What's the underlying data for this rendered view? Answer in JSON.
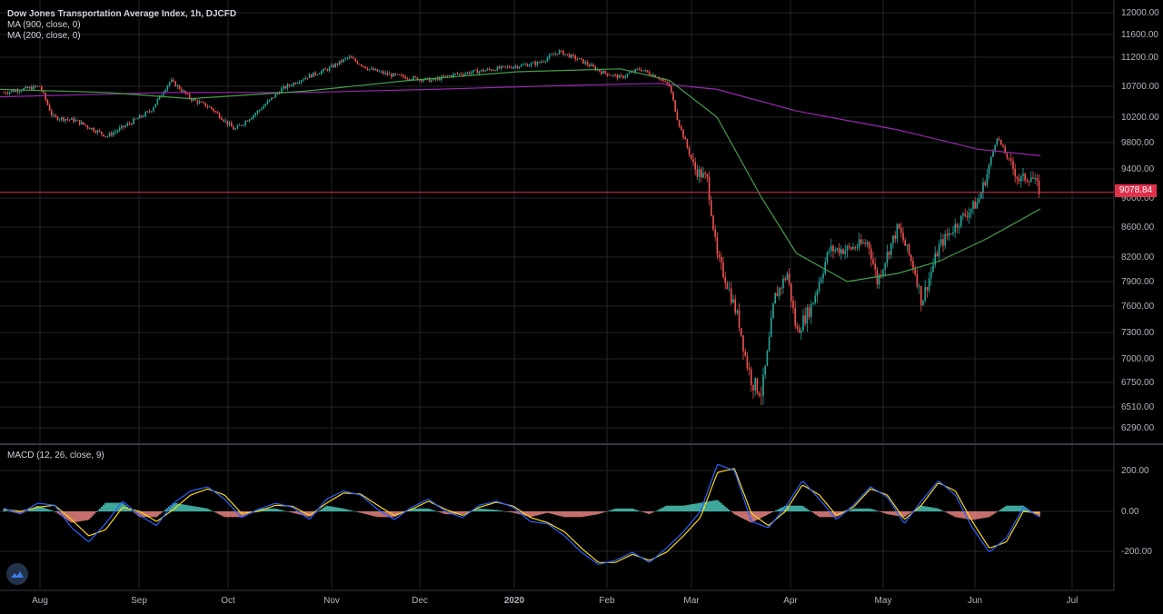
{
  "header": {
    "title": "Dow Jones Transportation Average Index, 1h, DJCFD",
    "ma1": "MA (900, close, 0)",
    "ma2": "MA (200, close, 0)"
  },
  "macd_label": "MACD (12, 26, close, 9)",
  "last_price": "9078.84",
  "colors": {
    "background": "#000000",
    "grid": "#23232a",
    "up": "#26a69a",
    "down": "#ef5350",
    "ma900": "#9c27b0",
    "ma200": "#43a047",
    "macd": "#2962ff",
    "signal": "#f9d71c",
    "price_line": "#e0304a"
  },
  "icons": [
    "tradingview-logo-icon"
  ],
  "chart_data": [
    {
      "type": "line",
      "title": "Dow Jones Transportation Average Index, 1h, DJCFD",
      "x_ticks": [
        "Aug",
        "Sep",
        "Oct",
        "Nov",
        "Dec",
        "2020",
        "Feb",
        "Mar",
        "Apr",
        "May",
        "Jun",
        "Jul"
      ],
      "y_ticks": [
        "12000.00",
        "11600.00",
        "11200.00",
        "10700.00",
        "10200.00",
        "9800.00",
        "9400.00",
        "9000.00",
        "8600.00",
        "8200.00",
        "7900.00",
        "7600.00",
        "7300.00",
        "7000.00",
        "6750.00",
        "6510.00",
        "6290.00"
      ],
      "ylim": [
        6150,
        12050
      ],
      "last_value": 9078.84,
      "grid": true,
      "series": [
        {
          "name": "DJT",
          "x": [
            "Jul 25",
            "Aug 1",
            "Aug 5",
            "Aug 12",
            "Aug 22",
            "Aug 29",
            "Sep 5",
            "Sep 12",
            "Sep 19",
            "Sep 26",
            "Oct 3",
            "Oct 10",
            "Oct 17",
            "Oct 24",
            "Oct 31",
            "Nov 7",
            "Nov 14",
            "Nov 21",
            "Nov 28",
            "Dec 5",
            "Dec 12",
            "Dec 19",
            "Dec 26",
            "Jan 2",
            "Jan 9",
            "Jan 16",
            "Jan 23",
            "Jan 30",
            "Feb 6",
            "Feb 13",
            "Feb 20",
            "Feb 24",
            "Feb 27",
            "Mar 2",
            "Mar 6",
            "Mar 9",
            "Mar 12",
            "Mar 16",
            "Mar 18",
            "Mar 20",
            "Mar 23",
            "Mar 25",
            "Mar 27",
            "Mar 31",
            "Apr 3",
            "Apr 8",
            "Apr 14",
            "Apr 20",
            "Apr 27",
            "Apr 30",
            "May 6",
            "May 12",
            "May 14",
            "May 20",
            "May 27",
            "Jun 2",
            "Jun 5",
            "Jun 8",
            "Jun 11",
            "Jun 15",
            "Jun 19",
            "Jun 22"
          ],
          "values": [
            10600,
            10700,
            10200,
            10150,
            9900,
            10100,
            10300,
            10800,
            10500,
            10350,
            10000,
            10300,
            10650,
            10850,
            11000,
            11200,
            11000,
            10900,
            10850,
            10800,
            10900,
            10950,
            11000,
            11050,
            11100,
            11300,
            11150,
            10950,
            10850,
            11000,
            10850,
            10700,
            10150,
            9400,
            9250,
            8200,
            7900,
            7400,
            7000,
            6750,
            6650,
            7100,
            7700,
            8000,
            7300,
            7600,
            8300,
            8300,
            8400,
            7900,
            8600,
            8000,
            7650,
            8350,
            8700,
            8950,
            9350,
            9900,
            9600,
            9250,
            9300,
            9078.84
          ]
        },
        {
          "name": "MA (900, close, 0)",
          "x": [
            "Jul 25",
            "Sep 12",
            "Oct 24",
            "Dec 5",
            "Jan 23",
            "Feb 20",
            "Mar 9",
            "Apr 3",
            "May 6",
            "Jun 2",
            "Jun 22"
          ],
          "values": [
            10530,
            10600,
            10600,
            10650,
            10720,
            10750,
            10650,
            10300,
            10000,
            9700,
            9600
          ]
        },
        {
          "name": "MA (200, close, 0)",
          "x": [
            "Jul 25",
            "Aug 22",
            "Sep 19",
            "Oct 24",
            "Nov 28",
            "Jan 2",
            "Feb 6",
            "Feb 24",
            "Mar 9",
            "Mar 23",
            "Apr 3",
            "Apr 20",
            "May 6",
            "May 20",
            "Jun 5",
            "Jun 22"
          ],
          "values": [
            10650,
            10600,
            10500,
            10620,
            10800,
            10950,
            11000,
            10800,
            10200,
            9000,
            8250,
            7900,
            8000,
            8150,
            8450,
            8850
          ]
        }
      ]
    },
    {
      "type": "line",
      "title": "MACD (12, 26, close, 9)",
      "y_ticks": [
        "200.00",
        "0.00",
        "-200.00"
      ],
      "ylim": [
        -400,
        260
      ],
      "grid": true,
      "series": [
        {
          "name": "MACD",
          "values": [
            15,
            -10,
            40,
            30,
            -80,
            -150,
            -60,
            50,
            -20,
            -70,
            40,
            100,
            120,
            60,
            -30,
            10,
            40,
            20,
            -40,
            60,
            100,
            80,
            10,
            -40,
            20,
            60,
            0,
            -30,
            30,
            50,
            20,
            -50,
            -60,
            -120,
            -200,
            -260,
            -240,
            -200,
            -250,
            -180,
            -100,
            0,
            230,
            200,
            -50,
            -80,
            20,
            150,
            60,
            -40,
            30,
            120,
            70,
            -60,
            50,
            150,
            80,
            -80,
            -200,
            -130,
            20,
            -30
          ]
        },
        {
          "name": "Signal",
          "values": [
            10,
            0,
            20,
            30,
            -40,
            -120,
            -90,
            20,
            0,
            -50,
            10,
            80,
            110,
            80,
            -10,
            0,
            30,
            25,
            -20,
            40,
            90,
            85,
            30,
            -20,
            10,
            50,
            10,
            -20,
            20,
            45,
            25,
            -30,
            -55,
            -100,
            -180,
            -250,
            -250,
            -210,
            -240,
            -200,
            -120,
            -30,
            190,
            210,
            -10,
            -70,
            0,
            130,
            80,
            -20,
            20,
            110,
            80,
            -40,
            30,
            140,
            100,
            -50,
            -180,
            -150,
            0,
            -10
          ]
        }
      ]
    }
  ]
}
